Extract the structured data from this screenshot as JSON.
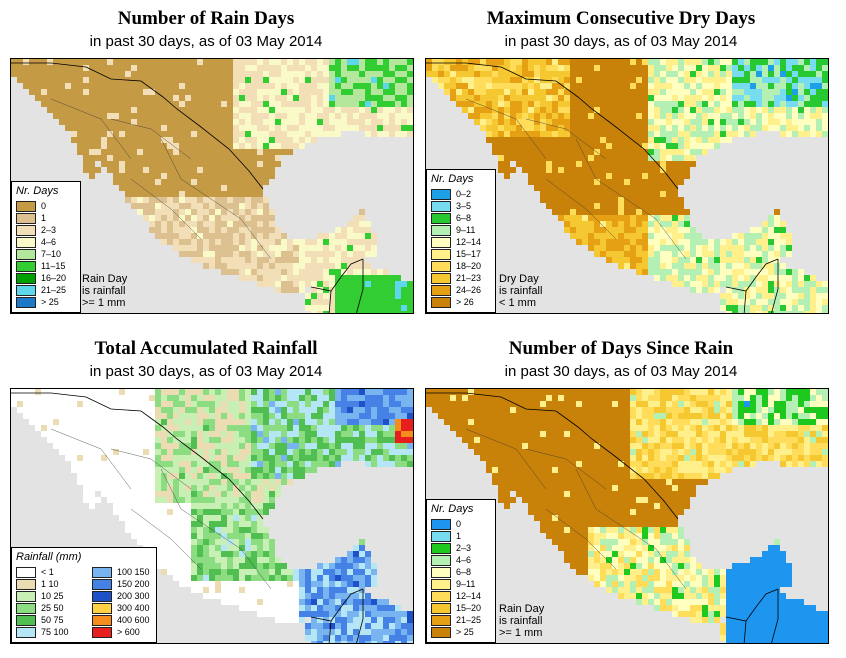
{
  "panels": [
    {
      "title": "Number of Rain Days",
      "subtitle": "in past 30 days, as of  03 May 2014",
      "legend_title": "Nr. Days",
      "legend": [
        {
          "label": "0",
          "color": "#c59a45"
        },
        {
          "label": "1",
          "color": "#dcc08f"
        },
        {
          "label": "2–3",
          "color": "#f2dfb8"
        },
        {
          "label": "4–6",
          "color": "#fafac8"
        },
        {
          "label": "7–10",
          "color": "#b4e69b"
        },
        {
          "label": "11–15",
          "color": "#32cd32"
        },
        {
          "label": "16–20",
          "color": "#00a000"
        },
        {
          "label": "21–25",
          "color": "#5fd7ea"
        },
        {
          "label": "> 25",
          "color": "#1e78c8"
        }
      ],
      "note": "Rain Day\nis rainfall\n>= 1 mm"
    },
    {
      "title": "Maximum Consecutive Dry Days",
      "subtitle": "in past 30 days, as of  03 May 2014",
      "legend_title": "Nr. Days",
      "legend": [
        {
          "label": "0–2",
          "color": "#1ea0e6"
        },
        {
          "label": "3–5",
          "color": "#78dcf0"
        },
        {
          "label": "6–8",
          "color": "#28c832"
        },
        {
          "label": "9–11",
          "color": "#b4f0b4"
        },
        {
          "label": "12–14",
          "color": "#ffffc0"
        },
        {
          "label": "15–17",
          "color": "#fff08c"
        },
        {
          "label": "18–20",
          "color": "#ffdc5a"
        },
        {
          "label": "21–23",
          "color": "#f5c832"
        },
        {
          "label": "24–26",
          "color": "#e6a014"
        },
        {
          "label": "> 26",
          "color": "#c8820a"
        }
      ],
      "note": "Dry Day\nis rainfall\n< 1 mm"
    },
    {
      "title": "Total Accumulated Rainfall",
      "subtitle": "in past 30 days, as of  03 May 2014",
      "legend_title": "Rainfall (mm)",
      "legend": [
        {
          "label": "< 1",
          "color": "#ffffff"
        },
        {
          "label": "1    10",
          "color": "#ecdcb4"
        },
        {
          "label": "10    25",
          "color": "#c8f0b4"
        },
        {
          "label": "25    50",
          "color": "#8cdc82"
        },
        {
          "label": "50    75",
          "color": "#50be50"
        },
        {
          "label": "75  100",
          "color": "#b4e6f5"
        },
        {
          "label": "100  150",
          "color": "#78b4f0"
        },
        {
          "label": "150  200",
          "color": "#4682e6"
        },
        {
          "label": "200  300",
          "color": "#1e50c8"
        },
        {
          "label": "300  400",
          "color": "#ffd246"
        },
        {
          "label": "400  600",
          "color": "#f58c1e"
        },
        {
          "label": "> 600",
          "color": "#e61e1e"
        }
      ],
      "note": ""
    },
    {
      "title": "Number of Days Since Rain",
      "subtitle": "in past 30 days, as of  03 May 2014",
      "legend_title": "Nr. Days",
      "legend": [
        {
          "label": "0",
          "color": "#1e96f0"
        },
        {
          "label": "1",
          "color": "#78dcf0"
        },
        {
          "label": "2–3",
          "color": "#1ec81e"
        },
        {
          "label": "4–6",
          "color": "#b4f0b4"
        },
        {
          "label": "6–8",
          "color": "#ffffc0"
        },
        {
          "label": "9–11",
          "color": "#fff08c"
        },
        {
          "label": "12–14",
          "color": "#ffdc5a"
        },
        {
          "label": "15–20",
          "color": "#f5c832"
        },
        {
          "label": "21–25",
          "color": "#e6a014"
        },
        {
          "label": "> 25",
          "color": "#c8820a"
        }
      ],
      "note": "Rain Day\nis rainfall\n>= 1 mm"
    }
  ],
  "map": {
    "ocean": "#e3e3e3",
    "border": "#000000"
  }
}
